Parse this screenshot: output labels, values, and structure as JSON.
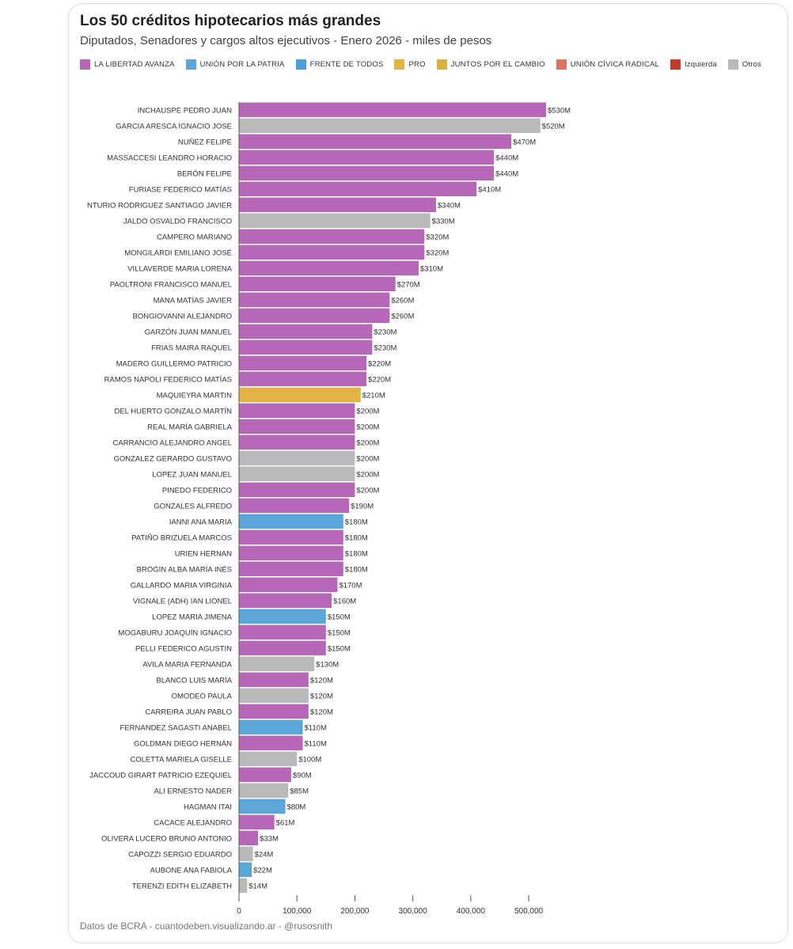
{
  "chart_data": {
    "type": "bar",
    "orientation": "horizontal",
    "title": "Los 50 créditos hipotecarios más grandes",
    "subtitle": "Diputados, Senadores y cargos altos ejecutivos - Enero 2026 - miles de pesos",
    "xlim": [
      0,
      530000
    ],
    "xticks": [
      0,
      100000,
      200000,
      300000,
      400000,
      500000
    ],
    "xtick_labels": [
      "0",
      "100,000",
      "200,000",
      "300,000",
      "400,000",
      "500,000"
    ],
    "legend": [
      {
        "name": "LA LIBERTAD AVANZA",
        "color": "#b767b7"
      },
      {
        "name": "UNIÓN POR LA PATRIA",
        "color": "#5ba6d8"
      },
      {
        "name": "FRENTE DE TODOS",
        "color": "#4a9fd8"
      },
      {
        "name": "PRO",
        "color": "#e3b443"
      },
      {
        "name": "JUNTOS POR EL CAMBIO",
        "color": "#d9b23c"
      },
      {
        "name": "UNIÓN CÍVICA RADICAL",
        "color": "#df7062"
      },
      {
        "name": "Izquierda",
        "color": "#c33c2a"
      },
      {
        "name": "Otros",
        "color": "#b9b9b9"
      }
    ],
    "bars": [
      {
        "name": "INCHAUSPE PEDRO JUAN",
        "value": 530000,
        "label": "$530M",
        "group": "LA LIBERTAD AVANZA"
      },
      {
        "name": "GARCIA ARESCA IGNACIO JOSE",
        "value": 520000,
        "label": "$520M",
        "group": "Otros"
      },
      {
        "name": "NUÑEZ FELIPE",
        "value": 470000,
        "label": "$470M",
        "group": "LA LIBERTAD AVANZA"
      },
      {
        "name": "MASSACCESI LEANDRO HORACIO",
        "value": 440000,
        "label": "$440M",
        "group": "LA LIBERTAD AVANZA"
      },
      {
        "name": "BERÓN FELIPE",
        "value": 440000,
        "label": "$440M",
        "group": "LA LIBERTAD AVANZA"
      },
      {
        "name": "FURIASE FEDERICO MATÍAS",
        "value": 410000,
        "label": "$410M",
        "group": "LA LIBERTAD AVANZA"
      },
      {
        "name": "NTURIO RODRIGUEZ SANTIAGO JAVIER",
        "value": 340000,
        "label": "$340M",
        "group": "LA LIBERTAD AVANZA"
      },
      {
        "name": "JALDO OSVALDO FRANCISCO",
        "value": 330000,
        "label": "$330M",
        "group": "Otros"
      },
      {
        "name": "CAMPERO MARIANO",
        "value": 320000,
        "label": "$320M",
        "group": "LA LIBERTAD AVANZA"
      },
      {
        "name": "MONGILARDI EMILIANO JOSÉ",
        "value": 320000,
        "label": "$320M",
        "group": "LA LIBERTAD AVANZA"
      },
      {
        "name": "VILLAVERDE MARIA LORENA",
        "value": 310000,
        "label": "$310M",
        "group": "LA LIBERTAD AVANZA"
      },
      {
        "name": "PAOLTRONI FRANCISCO MANUEL",
        "value": 270000,
        "label": "$270M",
        "group": "LA LIBERTAD AVANZA"
      },
      {
        "name": "MANA MATÍAS JAVIER",
        "value": 260000,
        "label": "$260M",
        "group": "LA LIBERTAD AVANZA"
      },
      {
        "name": "BONGIOVANNI ALEJANDRO",
        "value": 260000,
        "label": "$260M",
        "group": "LA LIBERTAD AVANZA"
      },
      {
        "name": "GARZÓN JUAN MANUEL",
        "value": 230000,
        "label": "$230M",
        "group": "LA LIBERTAD AVANZA"
      },
      {
        "name": "FRIAS MAIRA RAQUEL",
        "value": 230000,
        "label": "$230M",
        "group": "LA LIBERTAD AVANZA"
      },
      {
        "name": "MADERO GUILLERMO PATRICIO",
        "value": 220000,
        "label": "$220M",
        "group": "LA LIBERTAD AVANZA"
      },
      {
        "name": "RAMOS NAPOLI FEDERICO MATÍAS",
        "value": 220000,
        "label": "$220M",
        "group": "LA LIBERTAD AVANZA"
      },
      {
        "name": "MAQUIEYRA MARTIN",
        "value": 210000,
        "label": "$210M",
        "group": "PRO"
      },
      {
        "name": "DEL HUERTO GONZALO MARTÍN",
        "value": 200000,
        "label": "$200M",
        "group": "LA LIBERTAD AVANZA"
      },
      {
        "name": "REAL MARÍA GABRIELA",
        "value": 200000,
        "label": "$200M",
        "group": "LA LIBERTAD AVANZA"
      },
      {
        "name": "CARRANCIO ALEJANDRO ANGEL",
        "value": 200000,
        "label": "$200M",
        "group": "LA LIBERTAD AVANZA"
      },
      {
        "name": "GONZALEZ GERARDO GUSTAVO",
        "value": 200000,
        "label": "$200M",
        "group": "Otros"
      },
      {
        "name": "LOPEZ JUAN MANUEL",
        "value": 200000,
        "label": "$200M",
        "group": "Otros"
      },
      {
        "name": "PINEDO FEDERICO",
        "value": 200000,
        "label": "$200M",
        "group": "LA LIBERTAD AVANZA"
      },
      {
        "name": "GONZALES ALFREDO",
        "value": 190000,
        "label": "$190M",
        "group": "LA LIBERTAD AVANZA"
      },
      {
        "name": "IANNI ANA MARIA",
        "value": 180000,
        "label": "$180M",
        "group": "UNIÓN POR LA PATRIA"
      },
      {
        "name": "PATIÑO BRIZUELA MARCOS",
        "value": 180000,
        "label": "$180M",
        "group": "LA LIBERTAD AVANZA"
      },
      {
        "name": "URIEN HERNAN",
        "value": 180000,
        "label": "$180M",
        "group": "LA LIBERTAD AVANZA"
      },
      {
        "name": "BROGIN ALBA MARÍA INÉS",
        "value": 180000,
        "label": "$180M",
        "group": "LA LIBERTAD AVANZA"
      },
      {
        "name": "GALLARDO MARIA VIRGINIA",
        "value": 170000,
        "label": "$170M",
        "group": "LA LIBERTAD AVANZA"
      },
      {
        "name": "VIGNALE (ADH) IAN LIONEL",
        "value": 160000,
        "label": "$160M",
        "group": "LA LIBERTAD AVANZA"
      },
      {
        "name": "LOPEZ MARIA JIMENA",
        "value": 150000,
        "label": "$150M",
        "group": "UNIÓN POR LA PATRIA"
      },
      {
        "name": "MOGABURU JOAQUÍN IGNACIO",
        "value": 150000,
        "label": "$150M",
        "group": "LA LIBERTAD AVANZA"
      },
      {
        "name": "PELLI FEDERICO AGUSTIN",
        "value": 150000,
        "label": "$150M",
        "group": "LA LIBERTAD AVANZA"
      },
      {
        "name": "AVILA MARIA FERNANDA",
        "value": 130000,
        "label": "$130M",
        "group": "Otros"
      },
      {
        "name": "BLANCO LUIS MARÍA",
        "value": 120000,
        "label": "$120M",
        "group": "LA LIBERTAD AVANZA"
      },
      {
        "name": "OMODEO PAULA",
        "value": 120000,
        "label": "$120M",
        "group": "Otros"
      },
      {
        "name": "CARREIRA JUAN PABLO",
        "value": 120000,
        "label": "$120M",
        "group": "LA LIBERTAD AVANZA"
      },
      {
        "name": "FERNANDEZ SAGASTI ANABEL",
        "value": 110000,
        "label": "$110M",
        "group": "UNIÓN POR LA PATRIA"
      },
      {
        "name": "GOLDMAN DIEGO HERNÁN",
        "value": 110000,
        "label": "$110M",
        "group": "LA LIBERTAD AVANZA"
      },
      {
        "name": "COLETTA MARIELA GISELLE",
        "value": 100000,
        "label": "$100M",
        "group": "Otros"
      },
      {
        "name": "JACCOUD GIRART PATRICIO EZEQUIEL",
        "value": 90000,
        "label": "$90M",
        "group": "LA LIBERTAD AVANZA"
      },
      {
        "name": "ALI ERNESTO NADER",
        "value": 85000,
        "label": "$85M",
        "group": "Otros"
      },
      {
        "name": "HAGMAN ITAI",
        "value": 80000,
        "label": "$80M",
        "group": "UNIÓN POR LA PATRIA"
      },
      {
        "name": "CACACE ALEJANDRO",
        "value": 61000,
        "label": "$61M",
        "group": "LA LIBERTAD AVANZA"
      },
      {
        "name": "OLIVERA LUCERO BRUNO ANTONIO",
        "value": 33000,
        "label": "$33M",
        "group": "LA LIBERTAD AVANZA"
      },
      {
        "name": "CAPOZZI SERGIO EDUARDO",
        "value": 24000,
        "label": "$24M",
        "group": "Otros"
      },
      {
        "name": "AUBONE ANA FABIOLA",
        "value": 22000,
        "label": "$22M",
        "group": "UNIÓN POR LA PATRIA"
      },
      {
        "name": "TERENZI EDITH ELIZABETH",
        "value": 14000,
        "label": "$14M",
        "group": "Otros"
      }
    ]
  },
  "footer": "Datos de BCRA - cuantodeben.visualizando.ar - @rusosnith"
}
